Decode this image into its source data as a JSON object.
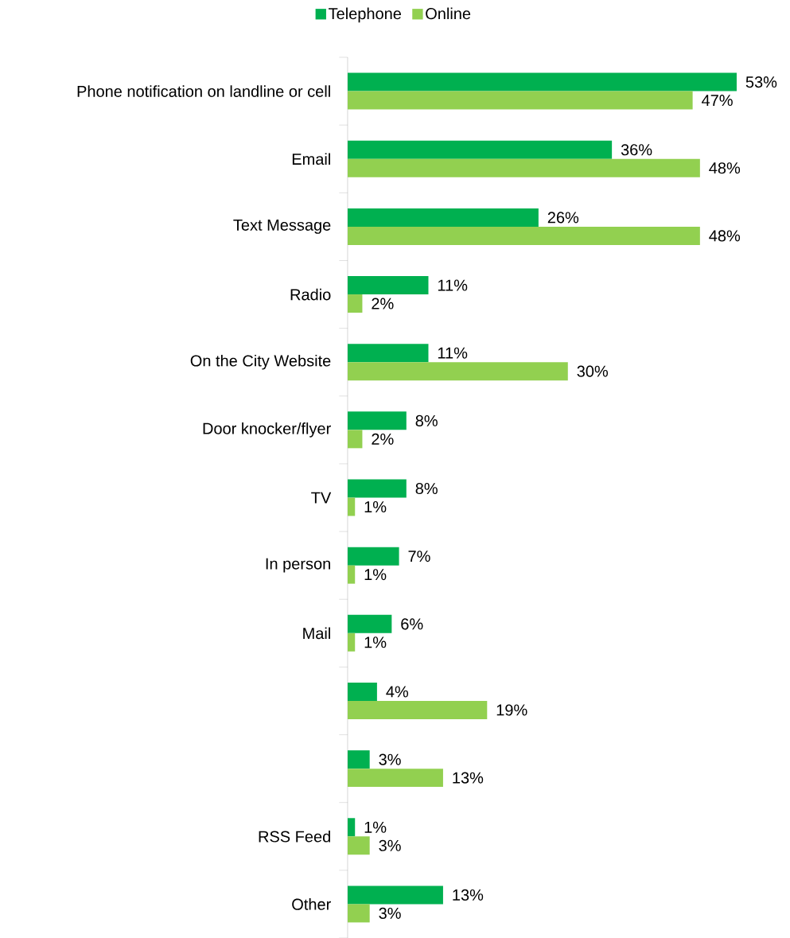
{
  "chart_data": {
    "type": "bar",
    "orientation": "horizontal",
    "categories": [
      "Phone notification on landline or cell",
      "Email",
      "Text Message",
      "Radio",
      "On the City Website",
      "Door knocker/flyer",
      "TV",
      "In person",
      "Mail",
      null,
      null,
      "RSS Feed",
      "Other"
    ],
    "series": [
      {
        "name": "Telephone",
        "color": "#00b050",
        "values": [
          53,
          36,
          26,
          11,
          11,
          8,
          8,
          7,
          6,
          4,
          3,
          1,
          13
        ],
        "value_labels": [
          "53%",
          "36%",
          "26%",
          "11%",
          "11%",
          "8%",
          "8%",
          "7%",
          "6%",
          "4%",
          "3%",
          "1%",
          "13%"
        ]
      },
      {
        "name": "Online",
        "color": "#92d050",
        "values": [
          47,
          48,
          48,
          2,
          30,
          2,
          1,
          1,
          1,
          19,
          13,
          3,
          3
        ],
        "value_labels": [
          "47%",
          "48%",
          "48%",
          "2%",
          "30%",
          "2%",
          "1%",
          "1%",
          "1%",
          "19%",
          "13%",
          "3%",
          "3%"
        ]
      }
    ],
    "tick_labels": "y",
    "legend": "top"
  }
}
